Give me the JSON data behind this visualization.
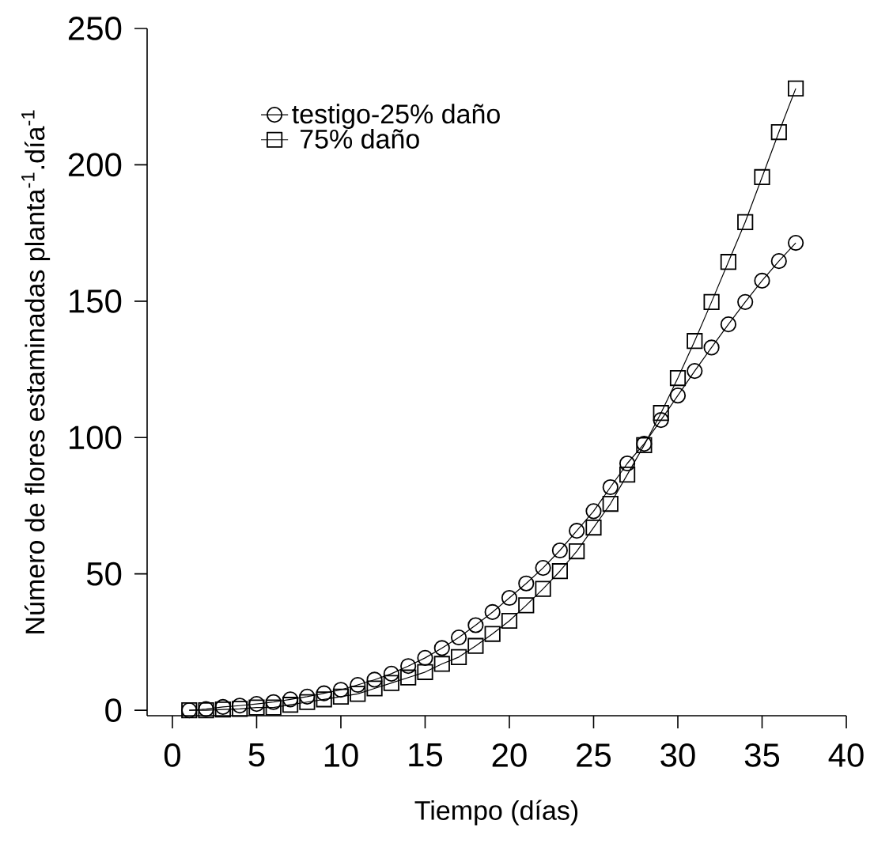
{
  "chart_data": {
    "type": "line",
    "xlabel": "Tiempo (días)",
    "ylabel": "Número de flores estaminadas planta$^{-1}$.día$^{-1}$",
    "x": [
      1,
      2,
      3,
      4,
      5,
      6,
      7,
      8,
      9,
      10,
      11,
      12,
      13,
      14,
      15,
      16,
      17,
      18,
      19,
      20,
      21,
      22,
      23,
      24,
      25,
      26,
      27,
      28,
      29,
      30,
      31,
      32,
      33,
      34,
      35,
      36,
      37
    ],
    "series": [
      {
        "name": "testigo-25% daño",
        "color": "#000000",
        "marker": "circle",
        "values": [
          0,
          0.4,
          1.2,
          1.7,
          2.3,
          3,
          4,
          5,
          6.2,
          7.5,
          9.3,
          11.2,
          13.4,
          16.2,
          19.2,
          22.8,
          26.7,
          31.2,
          36,
          41.2,
          46.5,
          52.2,
          58.6,
          65.8,
          73,
          81.8,
          90.5,
          97.7,
          106.4,
          115.4,
          124.4,
          133,
          141.5,
          149.7,
          157.5,
          164.7,
          171.4
        ]
      },
      {
        "name": " 75% daño",
        "color": "#000000",
        "marker": "square",
        "values": [
          0,
          0,
          0.3,
          0.5,
          1,
          1,
          2,
          3,
          4,
          5,
          6,
          8,
          10,
          12,
          14,
          17,
          19.5,
          23.6,
          28,
          32.8,
          38.5,
          44.5,
          51,
          58.3,
          67,
          75.7,
          86.4,
          97.2,
          109,
          121.8,
          135.4,
          149.7,
          164.4,
          179,
          195.5,
          212,
          228
        ]
      }
    ],
    "xlim": [
      -1.5,
      40
    ],
    "xticks": [
      0,
      5,
      10,
      15,
      20,
      25,
      30,
      35,
      40
    ],
    "ylim": [
      -2,
      250
    ],
    "yticks": [
      0,
      50,
      100,
      150,
      200,
      250
    ],
    "legend": "top left",
    "line_style": "solid"
  }
}
